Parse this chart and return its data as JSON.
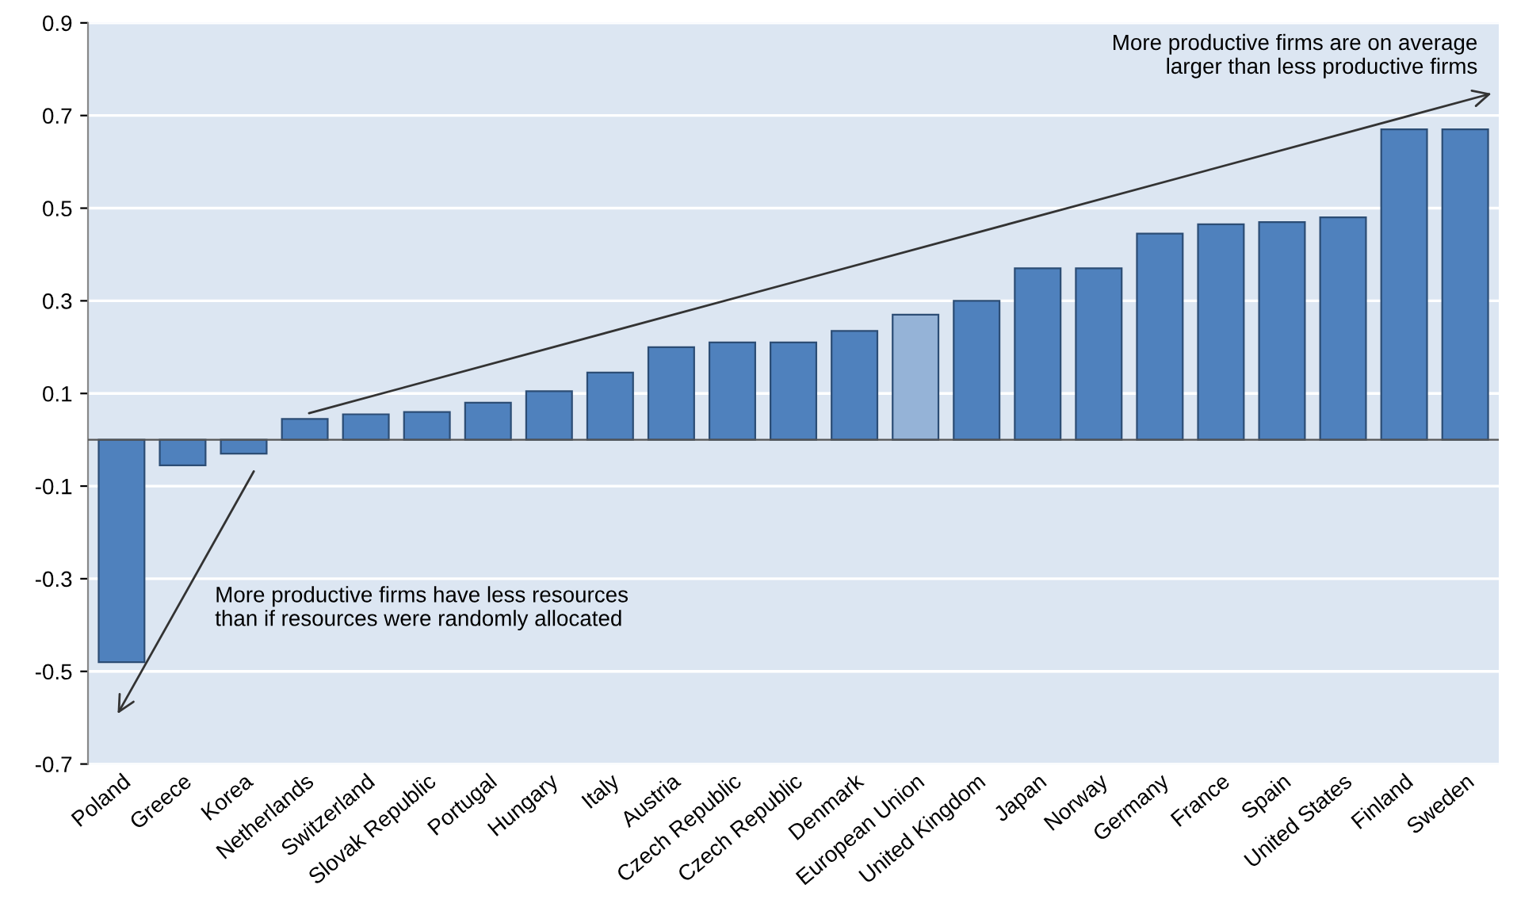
{
  "chart_data": {
    "type": "bar",
    "categories": [
      "Poland",
      "Greece",
      "Korea",
      "Netherlands",
      "Switzerland",
      "Slovak Republic",
      "Portugal",
      "Hungary",
      "Italy",
      "Austria",
      "Czech Republic",
      "Czech Republic",
      "Denmark",
      "European Union",
      "United Kingdom",
      "Japan",
      "Norway",
      "Germany",
      "France",
      "Spain",
      "United States",
      "Finland",
      "Sweden"
    ],
    "values": [
      -0.48,
      -0.055,
      -0.03,
      0.045,
      0.055,
      0.06,
      0.08,
      0.105,
      0.145,
      0.2,
      0.21,
      0.21,
      0.235,
      0.27,
      0.3,
      0.37,
      0.37,
      0.445,
      0.465,
      0.47,
      0.48,
      0.67,
      0.67
    ],
    "colors": [
      "#4f81bd",
      "#4f81bd",
      "#4f81bd",
      "#4f81bd",
      "#4f81bd",
      "#4f81bd",
      "#4f81bd",
      "#4f81bd",
      "#4f81bd",
      "#4f81bd",
      "#4f81bd",
      "#4f81bd",
      "#4f81bd",
      "#95b3d7",
      "#4f81bd",
      "#4f81bd",
      "#4f81bd",
      "#4f81bd",
      "#4f81bd",
      "#4f81bd",
      "#4f81bd",
      "#4f81bd",
      "#4f81bd"
    ],
    "ylim": [
      -0.7,
      0.9
    ],
    "yticks": [
      -0.7,
      -0.5,
      -0.3,
      -0.1,
      0.1,
      0.3,
      0.5,
      0.7,
      0.9
    ],
    "grid": "y",
    "annotations": [
      "More productive firms are on average\nlarger than less productive firms",
      "More productive firms have less resources\nthan if resources were randomly allocated"
    ]
  }
}
